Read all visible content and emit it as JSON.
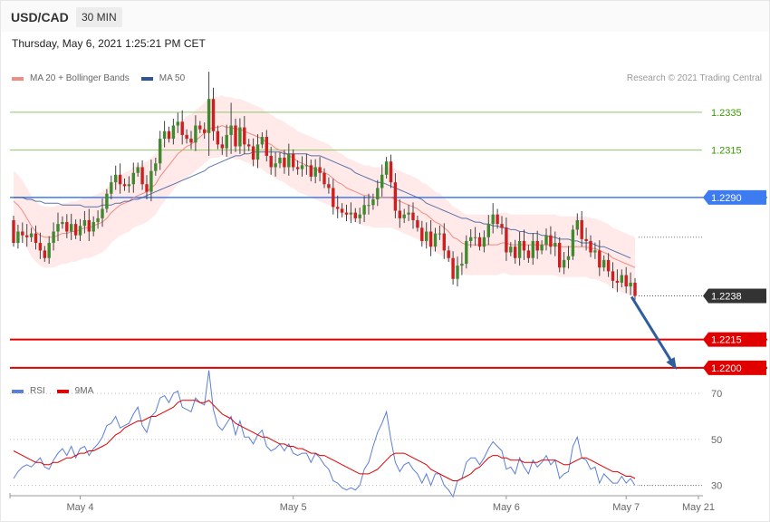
{
  "header": {
    "symbol": "USD/CAD",
    "interval": "30 MIN"
  },
  "datetime": "Thursday, May 6, 2021 1:25:21 PM CET",
  "credit": "Research © 2021 Trading Central",
  "legend_main": [
    {
      "label": "MA 20 + Bollinger Bands",
      "color": "#f28b82"
    },
    {
      "label": "MA 50",
      "color": "#2d5596"
    }
  ],
  "legend_rsi": [
    {
      "label": "RSI",
      "color": "#5b7fd6"
    },
    {
      "label": "9MA",
      "color": "#e00000"
    }
  ],
  "chart_data": [
    {
      "type": "candlestick",
      "title": "USD/CAD",
      "ylim": [
        1.2188,
        1.2356
      ],
      "levels": [
        {
          "value": 1.2335,
          "label": "1.2335",
          "kind": "target",
          "color": "#8fc46a",
          "text_color": "#3a9a00"
        },
        {
          "value": 1.2315,
          "label": "1.2315",
          "kind": "target",
          "color": "#8fc46a",
          "text_color": "#3a9a00"
        },
        {
          "value": 1.229,
          "label": "1.2290",
          "kind": "pivot",
          "color": "#3d7cf0",
          "text_color": "#ffffff"
        },
        {
          "value": 1.2238,
          "label": "1.2238",
          "kind": "last",
          "color": "#333333",
          "text_color": "#ffffff"
        },
        {
          "value": 1.2215,
          "label": "1.2215",
          "kind": "support",
          "color": "#e00000",
          "text_color": "#ffffff"
        },
        {
          "value": 1.22,
          "label": "1.2200",
          "kind": "support",
          "color": "#e00000",
          "text_color": "#ffffff"
        }
      ],
      "x_ticks": [
        {
          "label": "May 4",
          "index": 15
        },
        {
          "label": "May 5",
          "index": 63
        },
        {
          "label": "May 6",
          "index": 111
        },
        {
          "label": "May 7",
          "index": 138
        },
        {
          "label": "May 21",
          "index": 150
        }
      ],
      "projection": {
        "from": [
          138,
          1.2238
        ],
        "to": [
          152,
          1.22
        ]
      },
      "close": [
        1.2266,
        1.2272,
        1.227,
        1.2269,
        1.2271,
        1.2266,
        1.2262,
        1.2258,
        1.2266,
        1.2272,
        1.2276,
        1.2277,
        1.2272,
        1.2276,
        1.227,
        1.2275,
        1.2278,
        1.2272,
        1.2277,
        1.2279,
        1.2284,
        1.2292,
        1.2298,
        1.2302,
        1.2297,
        1.2296,
        1.2297,
        1.2303,
        1.2306,
        1.2297,
        1.2293,
        1.2304,
        1.2308,
        1.2321,
        1.2325,
        1.2321,
        1.2328,
        1.233,
        1.2323,
        1.2321,
        1.2319,
        1.2328,
        1.2326,
        1.2324,
        1.2342,
        1.2325,
        1.2318,
        1.2316,
        1.2323,
        1.2328,
        1.2317,
        1.2327,
        1.2318,
        1.2317,
        1.231,
        1.2318,
        1.2322,
        1.2312,
        1.2306,
        1.2308,
        1.2311,
        1.2306,
        1.2313,
        1.2306,
        1.2305,
        1.2307,
        1.2307,
        1.2301,
        1.2306,
        1.2303,
        1.2297,
        1.2295,
        1.2285,
        1.2284,
        1.2282,
        1.2281,
        1.2282,
        1.2279,
        1.2281,
        1.2286,
        1.2286,
        1.2289,
        1.2295,
        1.2302,
        1.2309,
        1.2298,
        1.2283,
        1.2279,
        1.2281,
        1.2282,
        1.2278,
        1.2274,
        1.2267,
        1.2272,
        1.2264,
        1.2271,
        1.2271,
        1.2262,
        1.2258,
        1.2247,
        1.2254,
        1.2255,
        1.2267,
        1.2269,
        1.2269,
        1.2264,
        1.2269,
        1.2276,
        1.2281,
        1.2276,
        1.2274,
        1.2261,
        1.2264,
        1.2258,
        1.2267,
        1.2262,
        1.2258,
        1.2267,
        1.2262,
        1.2265,
        1.227,
        1.2264,
        1.2266,
        1.2253,
        1.2257,
        1.2259,
        1.2273,
        1.2278,
        1.2268,
        1.2267,
        1.2261,
        1.2262,
        1.2253,
        1.2257,
        1.2251,
        1.2246,
        1.2245,
        1.2249,
        1.2243,
        1.2245,
        1.2238
      ],
      "overlays": {
        "ma20": [
          1.2288,
          1.2286,
          1.2283,
          1.2279,
          1.2275,
          1.2272,
          1.227,
          1.2269,
          1.2269,
          1.2269,
          1.227,
          1.2271,
          1.2271,
          1.2272,
          1.2272,
          1.2273,
          1.2274,
          1.2274,
          1.2275,
          1.2276,
          1.2277,
          1.2279,
          1.2282,
          1.2284,
          1.2286,
          1.2287,
          1.2288,
          1.229,
          1.2291,
          1.2292,
          1.2293,
          1.2295,
          1.2297,
          1.2301,
          1.2304,
          1.2307,
          1.231,
          1.2313,
          1.2315,
          1.2317,
          1.2318,
          1.232,
          1.2322,
          1.2324,
          1.2326,
          1.2327,
          1.2327,
          1.2328,
          1.2327,
          1.2327,
          1.2326,
          1.2326,
          1.2325,
          1.2324,
          1.2323,
          1.2322,
          1.2321,
          1.2319,
          1.2318,
          1.2316,
          1.2315,
          1.2314,
          1.2312,
          1.2311,
          1.2309,
          1.2308,
          1.2307,
          1.2306,
          1.2305,
          1.2304,
          1.2303,
          1.2302,
          1.23,
          1.2298,
          1.2297,
          1.2295,
          1.2294,
          1.2293,
          1.2292,
          1.2291,
          1.2291,
          1.229,
          1.229,
          1.229,
          1.229,
          1.229,
          1.2289,
          1.2288,
          1.2287,
          1.2286,
          1.2285,
          1.2284,
          1.2282,
          1.2281,
          1.2279,
          1.2277,
          1.2276,
          1.2274,
          1.2272,
          1.2269,
          1.2268,
          1.2266,
          1.2265,
          1.2265,
          1.2265,
          1.2265,
          1.2265,
          1.2265,
          1.2265,
          1.2265,
          1.2266,
          1.2266,
          1.2265,
          1.2265,
          1.2265,
          1.2265,
          1.2265,
          1.2265,
          1.2265,
          1.2265,
          1.2265,
          1.2265,
          1.2265,
          1.2264,
          1.2264,
          1.2264,
          1.2264,
          1.2264,
          1.2264,
          1.2264,
          1.2263,
          1.2263,
          1.2262,
          1.2261,
          1.226,
          1.2258,
          1.2257,
          1.2256,
          1.2255,
          1.2254,
          1.2253
        ],
        "ma50": [
          1.229,
          1.229,
          1.229,
          1.2289,
          1.2289,
          1.2288,
          1.2288,
          1.2287,
          1.2287,
          1.2287,
          1.2287,
          1.2286,
          1.2286,
          1.2286,
          1.2286,
          1.2286,
          1.2285,
          1.2285,
          1.2285,
          1.2285,
          1.2286,
          1.2286,
          1.2286,
          1.2287,
          1.2287,
          1.2288,
          1.2288,
          1.2289,
          1.2289,
          1.229,
          1.2291,
          1.2292,
          1.2293,
          1.2294,
          1.2295,
          1.2296,
          1.2297,
          1.2298,
          1.2299,
          1.23,
          1.2301,
          1.2302,
          1.2303,
          1.2304,
          1.2306,
          1.2307,
          1.2308,
          1.2309,
          1.231,
          1.2311,
          1.2312,
          1.2312,
          1.2313,
          1.2313,
          1.2314,
          1.2314,
          1.2314,
          1.2314,
          1.2314,
          1.2314,
          1.2314,
          1.2313,
          1.2313,
          1.2313,
          1.2313,
          1.2313,
          1.2313,
          1.2312,
          1.2312,
          1.2312,
          1.2311,
          1.231,
          1.2309,
          1.2308,
          1.2307,
          1.2306,
          1.2305,
          1.2303,
          1.2302,
          1.2301,
          1.23,
          1.2299,
          1.2298,
          1.2298,
          1.2297,
          1.2296,
          1.2295,
          1.2294,
          1.2293,
          1.2292,
          1.2291,
          1.229,
          1.2289,
          1.2287,
          1.2286,
          1.2285,
          1.2284,
          1.2283,
          1.2282,
          1.2281,
          1.228,
          1.2279,
          1.2279,
          1.2278,
          1.2277,
          1.2277,
          1.2276,
          1.2276,
          1.2275,
          1.2275,
          1.2274,
          1.2274,
          1.2273,
          1.2273,
          1.2272,
          1.2272,
          1.2271,
          1.2271,
          1.2271,
          1.227,
          1.227,
          1.2269,
          1.2269,
          1.2268,
          1.2268,
          1.2268,
          1.2267,
          1.2267,
          1.2266,
          1.2266,
          1.2266,
          1.2265,
          1.2264,
          1.2264,
          1.2263,
          1.2262,
          1.2261,
          1.226,
          1.2259,
          1.2258
        ],
        "bb_width": 0.0016
      }
    },
    {
      "type": "line",
      "title": "RSI",
      "ylim": [
        20,
        85
      ],
      "y_ticks": [
        70,
        50,
        30
      ],
      "series": [
        {
          "name": "RSI",
          "color": "#5b7fd6",
          "values": [
            33,
            36,
            38,
            39,
            38,
            40,
            42,
            38,
            37,
            41,
            44,
            46,
            43,
            47,
            42,
            46,
            47,
            43,
            46,
            48,
            51,
            56,
            57,
            60,
            55,
            56,
            57,
            61,
            64,
            56,
            53,
            60,
            62,
            68,
            69,
            66,
            70,
            71,
            64,
            63,
            62,
            68,
            66,
            65,
            80,
            63,
            56,
            54,
            57,
            60,
            52,
            58,
            51,
            51,
            48,
            52,
            54,
            47,
            45,
            46,
            48,
            45,
            48,
            44,
            43,
            44,
            44,
            40,
            44,
            42,
            39,
            37,
            32,
            31,
            29,
            28,
            29,
            28,
            30,
            37,
            40,
            47,
            53,
            57,
            62,
            50,
            40,
            36,
            39,
            40,
            37,
            35,
            31,
            35,
            30,
            35,
            35,
            30,
            28,
            25,
            32,
            33,
            40,
            42,
            42,
            39,
            42,
            46,
            49,
            47,
            45,
            37,
            38,
            35,
            42,
            38,
            35,
            41,
            38,
            40,
            43,
            39,
            41,
            33,
            35,
            36,
            47,
            51,
            42,
            41,
            37,
            38,
            31,
            35,
            33,
            31,
            31,
            34,
            31,
            33,
            30
          ]
        },
        {
          "name": "9MA",
          "color": "#e00000",
          "values": [
            45,
            44,
            43,
            42,
            41,
            40,
            40,
            39,
            39,
            40,
            40,
            41,
            42,
            42,
            43,
            44,
            44,
            45,
            45,
            46,
            47,
            48,
            50,
            52,
            53,
            55,
            56,
            57,
            58,
            58,
            59,
            60,
            60,
            61,
            62,
            63,
            64,
            66,
            67,
            67,
            67,
            67,
            66,
            66,
            67,
            65,
            63,
            61,
            60,
            59,
            57,
            56,
            55,
            54,
            53,
            52,
            51,
            51,
            50,
            49,
            48,
            48,
            47,
            47,
            46,
            46,
            45,
            44,
            44,
            43,
            43,
            42,
            41,
            40,
            39,
            38,
            37,
            36,
            35,
            35,
            35,
            36,
            37,
            39,
            41,
            43,
            44,
            44,
            44,
            43,
            42,
            41,
            40,
            39,
            37,
            36,
            35,
            34,
            33,
            32,
            32,
            33,
            34,
            35,
            37,
            38,
            40,
            42,
            43,
            43,
            42,
            42,
            41,
            41,
            41,
            40,
            40,
            40,
            40,
            41,
            41,
            41,
            41,
            40,
            39,
            39,
            40,
            41,
            42,
            42,
            41,
            40,
            39,
            38,
            37,
            36,
            36,
            35,
            34,
            34,
            33
          ]
        }
      ]
    }
  ]
}
